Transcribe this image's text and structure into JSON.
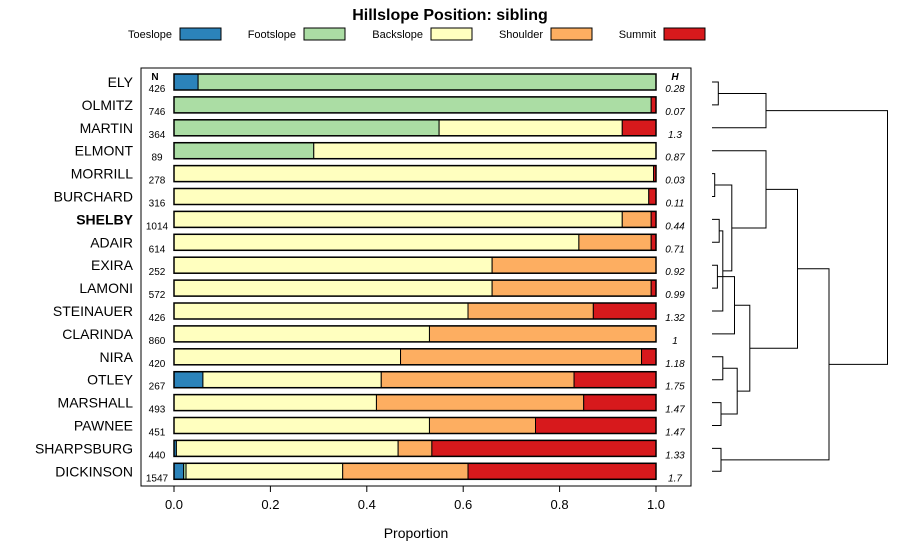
{
  "chart_data": {
    "type": "bar",
    "stacked": true,
    "orientation": "horizontal",
    "title": "Hillslope Position: sibling",
    "xlabel": "Proportion",
    "xlim": [
      0,
      1
    ],
    "xticks": [
      "0.0",
      "0.2",
      "0.4",
      "0.6",
      "0.8",
      "1.0"
    ],
    "n_header": "N",
    "h_header": "H",
    "legend_position": "top",
    "series": [
      {
        "name": "Toeslope",
        "color": "#2b83ba"
      },
      {
        "name": "Footslope",
        "color": "#abdda4"
      },
      {
        "name": "Backslope",
        "color": "#ffffbf"
      },
      {
        "name": "Shoulder",
        "color": "#fdae61"
      },
      {
        "name": "Summit",
        "color": "#d7191c"
      }
    ],
    "categories": [
      {
        "name": "ELY",
        "n": "426",
        "h": "0.28",
        "bold": false,
        "values": [
          0.05,
          0.95,
          0.0,
          0.0,
          0.0
        ]
      },
      {
        "name": "OLMITZ",
        "n": "746",
        "h": "0.07",
        "bold": false,
        "values": [
          0.0,
          0.99,
          0.0,
          0.0,
          0.01
        ]
      },
      {
        "name": "MARTIN",
        "n": "364",
        "h": "1.3",
        "bold": false,
        "values": [
          0.0,
          0.55,
          0.38,
          0.0,
          0.07
        ]
      },
      {
        "name": "ELMONT",
        "n": "89",
        "h": "0.87",
        "bold": false,
        "values": [
          0.0,
          0.29,
          0.71,
          0.0,
          0.0
        ]
      },
      {
        "name": "MORRILL",
        "n": "278",
        "h": "0.03",
        "bold": false,
        "values": [
          0.0,
          0.0,
          0.995,
          0.0,
          0.005
        ]
      },
      {
        "name": "BURCHARD",
        "n": "316",
        "h": "0.11",
        "bold": false,
        "values": [
          0.0,
          0.0,
          0.985,
          0.0,
          0.015
        ]
      },
      {
        "name": "SHELBY",
        "n": "1014",
        "h": "0.44",
        "bold": true,
        "values": [
          0.0,
          0.0,
          0.93,
          0.06,
          0.01
        ]
      },
      {
        "name": "ADAIR",
        "n": "614",
        "h": "0.71",
        "bold": false,
        "values": [
          0.0,
          0.0,
          0.84,
          0.15,
          0.01
        ]
      },
      {
        "name": "EXIRA",
        "n": "252",
        "h": "0.92",
        "bold": false,
        "values": [
          0.0,
          0.0,
          0.66,
          0.34,
          0.0
        ]
      },
      {
        "name": "LAMONI",
        "n": "572",
        "h": "0.99",
        "bold": false,
        "values": [
          0.0,
          0.0,
          0.66,
          0.33,
          0.01
        ]
      },
      {
        "name": "STEINAUER",
        "n": "426",
        "h": "1.32",
        "bold": false,
        "values": [
          0.0,
          0.0,
          0.61,
          0.26,
          0.13
        ]
      },
      {
        "name": "CLARINDA",
        "n": "860",
        "h": "1",
        "bold": false,
        "values": [
          0.0,
          0.0,
          0.53,
          0.47,
          0.0
        ]
      },
      {
        "name": "NIRA",
        "n": "420",
        "h": "1.18",
        "bold": false,
        "values": [
          0.0,
          0.0,
          0.47,
          0.5,
          0.03
        ]
      },
      {
        "name": "OTLEY",
        "n": "267",
        "h": "1.75",
        "bold": false,
        "values": [
          0.06,
          0.0,
          0.37,
          0.4,
          0.17
        ]
      },
      {
        "name": "MARSHALL",
        "n": "493",
        "h": "1.47",
        "bold": false,
        "values": [
          0.0,
          0.0,
          0.42,
          0.43,
          0.15
        ]
      },
      {
        "name": "PAWNEE",
        "n": "451",
        "h": "1.47",
        "bold": false,
        "values": [
          0.0,
          0.0,
          0.53,
          0.22,
          0.25
        ]
      },
      {
        "name": "SHARPSBURG",
        "n": "440",
        "h": "1.33",
        "bold": false,
        "values": [
          0.005,
          0.0,
          0.46,
          0.07,
          0.465
        ]
      },
      {
        "name": "DICKINSON",
        "n": "1547",
        "h": "1.7",
        "bold": false,
        "values": [
          0.02,
          0.005,
          0.325,
          0.26,
          0.39
        ]
      }
    ],
    "dendrogram": {
      "merges": [
        [
          -1,
          -2
        ],
        [
          -5,
          -6
        ],
        [
          -7,
          -8
        ],
        [
          -9,
          -10
        ],
        [
          -13,
          -14
        ],
        [
          -15,
          -16
        ],
        [
          -17,
          -18
        ],
        [
          3,
          -11
        ],
        [
          4,
          -12
        ],
        [
          5,
          6
        ],
        [
          2,
          8
        ],
        [
          9,
          10
        ],
        [
          1,
          -3
        ],
        [
          -4,
          11
        ],
        [
          14,
          12
        ],
        [
          7,
          15
        ],
        [
          13,
          16
        ]
      ],
      "heights": [
        0.07,
        0.03,
        0.08,
        0.06,
        0.12,
        0.1,
        0.1,
        0.12,
        0.25,
        0.28,
        0.22,
        0.42,
        0.6,
        0.6,
        0.95,
        1.3,
        1.95
      ],
      "max_height": 2.0
    }
  }
}
